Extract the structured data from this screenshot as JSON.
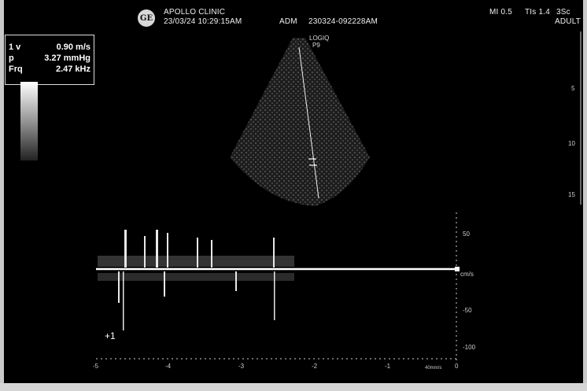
{
  "header": {
    "clinic": "APOLLO CLINIC",
    "datetime": "23/03/24 10:29:15AM",
    "operator": "ADM",
    "exam_id": "230324-092228AM",
    "mi": "MI 0.5",
    "tis": "TIs 1.4",
    "probe": "3Sc",
    "preset": "ADULT",
    "logo_text": "GE"
  },
  "probe_label": {
    "line1": "LOGIQ",
    "line2": "P9"
  },
  "measurements": {
    "rows": [
      {
        "label": "1 v",
        "value": "0.90 m/s"
      },
      {
        "label": "p",
        "value": "3.27 mmHg"
      },
      {
        "label": "Frq",
        "value": "2.47 kHz"
      }
    ]
  },
  "depth_scale": {
    "ticks": [
      "5",
      "10",
      "15"
    ]
  },
  "doppler_scale": {
    "labels": [
      "50",
      "cm/s",
      "-50",
      "-100"
    ]
  },
  "time_axis": {
    "labels": [
      "-5",
      "-4",
      "-3",
      "-2",
      "-1",
      "0"
    ],
    "unit": "40mm/s"
  },
  "cursor_marker": "+1",
  "colors": {
    "background": "#000000",
    "trace": "#ffffff",
    "frame": "#c9c9c9"
  }
}
